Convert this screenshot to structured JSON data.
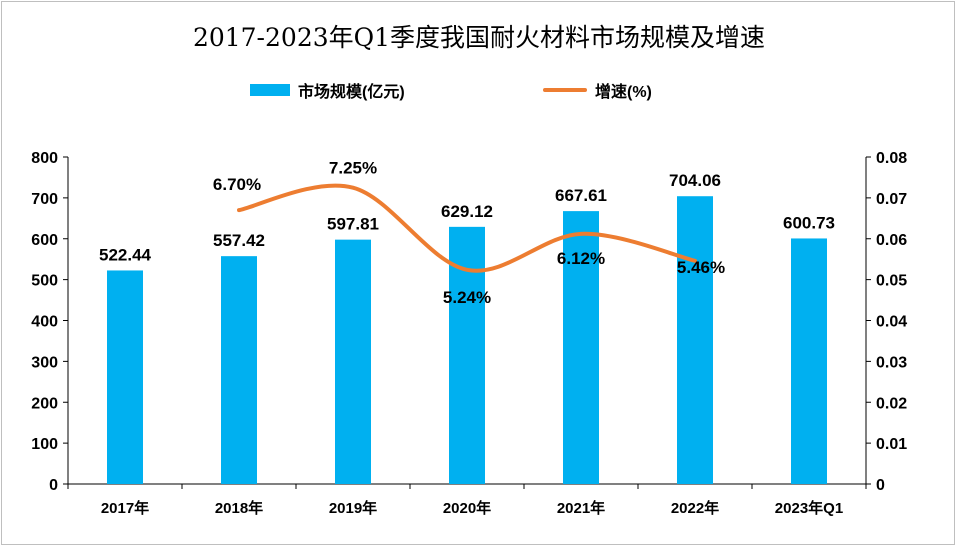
{
  "chart_data": {
    "type": "bar+line",
    "title": "2017-2023年Q1季度我国耐火材料市场规模及增速",
    "categories": [
      "2017年",
      "2018年",
      "2019年",
      "2020年",
      "2021年",
      "2022年",
      "2023年Q1"
    ],
    "series": [
      {
        "name": "市场规模(亿元)",
        "type": "bar",
        "axis": "left",
        "color": "#00B0F0",
        "values": [
          522.44,
          557.42,
          597.81,
          629.12,
          667.61,
          704.06,
          600.73
        ],
        "labels": [
          "522.44",
          "557.42",
          "597.81",
          "629.12",
          "667.61",
          "704.06",
          "600.73"
        ]
      },
      {
        "name": "增速(%)",
        "type": "line",
        "axis": "right",
        "color": "#ED7D31",
        "smooth": true,
        "values": [
          null,
          0.067,
          0.0725,
          0.0524,
          0.0612,
          0.0546,
          null
        ],
        "labels": [
          null,
          "6.70%",
          "7.25%",
          "5.24%",
          "6.12%",
          "5.46%",
          null
        ]
      }
    ],
    "y_left": {
      "min": 0,
      "max": 800,
      "ticks": [
        "0",
        "100",
        "200",
        "300",
        "400",
        "500",
        "600",
        "700",
        "800"
      ]
    },
    "y_right": {
      "min": 0,
      "max": 0.08,
      "ticks": [
        "0",
        "0.01",
        "0.02",
        "0.03",
        "0.04",
        "0.05",
        "0.06",
        "0.07",
        "0.08"
      ]
    },
    "grid": false,
    "legend": "top"
  }
}
